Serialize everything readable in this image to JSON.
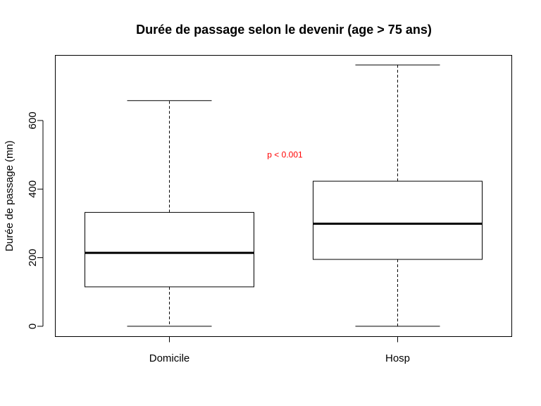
{
  "chart_data": {
    "type": "boxplot",
    "title": "Durée de passage selon le devenir (age > 75 ans)",
    "xlabel": "",
    "ylabel": "Durée de passage (mn)",
    "ylim": [
      -30,
      790
    ],
    "yticks": [
      0,
      200,
      400,
      600
    ],
    "categories": [
      "Domicile",
      "Hosp"
    ],
    "boxes": [
      {
        "category": "Domicile",
        "whisker_low": 0,
        "q1": 115,
        "median": 214,
        "q3": 332,
        "whisker_high": 658
      },
      {
        "category": "Hosp",
        "whisker_low": 0,
        "q1": 195,
        "median": 299,
        "q3": 423,
        "whisker_high": 762
      }
    ],
    "annotation": {
      "text": "p < 0.001",
      "color": "#ff0000",
      "x": 1.5,
      "y": 500
    },
    "grid": false,
    "legend": "none"
  }
}
